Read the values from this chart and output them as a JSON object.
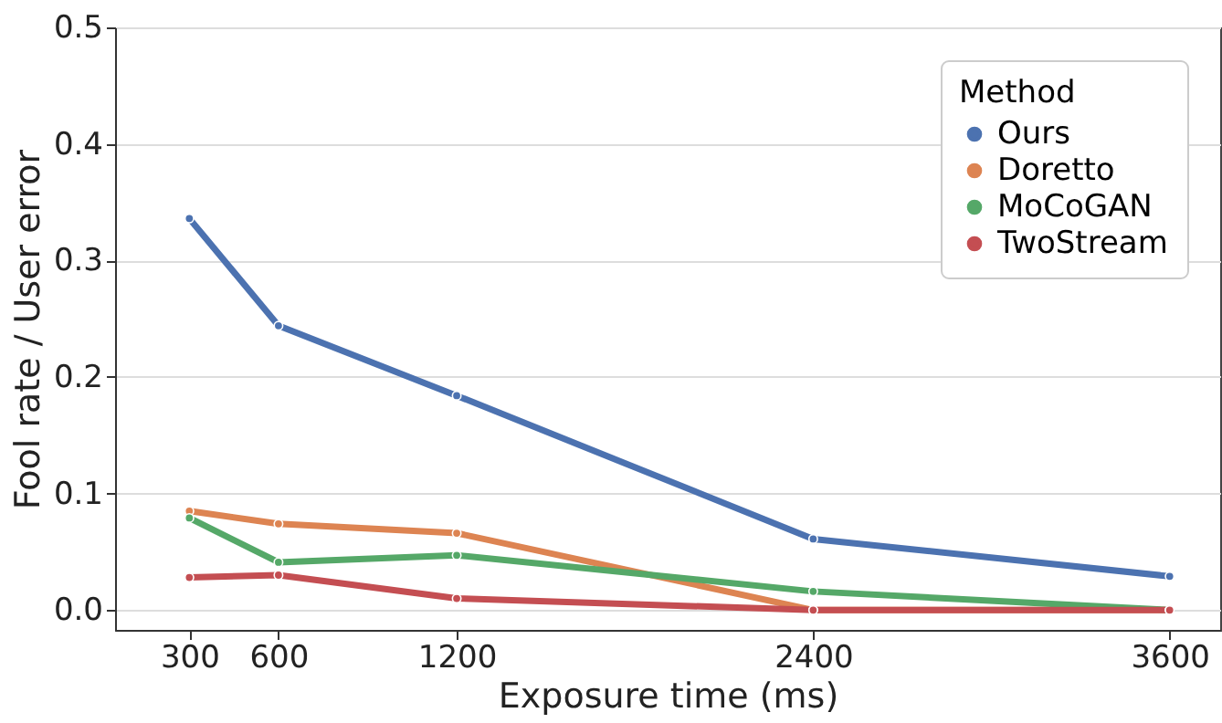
{
  "chart_data": {
    "type": "line",
    "xlabel": "Exposure time (ms)",
    "ylabel": "Fool rate / User error",
    "legend_title": "Method",
    "x": [
      300,
      600,
      1200,
      2400,
      3600
    ],
    "series": [
      {
        "name": "Ours",
        "color": "#4c72b0",
        "values": [
          0.336,
          0.244,
          0.184,
          0.061,
          0.029
        ]
      },
      {
        "name": "Doretto",
        "color": "#dd8452",
        "values": [
          0.085,
          0.074,
          0.066,
          0.0,
          0.0
        ]
      },
      {
        "name": "MoCoGAN",
        "color": "#55a868",
        "values": [
          0.079,
          0.041,
          0.047,
          0.016,
          0.0
        ]
      },
      {
        "name": "TwoStream",
        "color": "#c44e52",
        "values": [
          0.028,
          0.03,
          0.01,
          0.0,
          0.0
        ]
      }
    ],
    "xlim": [
      50,
      3770
    ],
    "xticks": [
      300,
      600,
      1200,
      2400,
      3600
    ],
    "ylim": [
      -0.017,
      0.5
    ],
    "yticks": [
      {
        "value": 0,
        "label": "0.0"
      },
      0.1,
      0.2,
      0.3,
      0.4,
      0.5
    ],
    "grid": "y",
    "legend": "top right",
    "marker": "circle",
    "line_style": "solid"
  }
}
